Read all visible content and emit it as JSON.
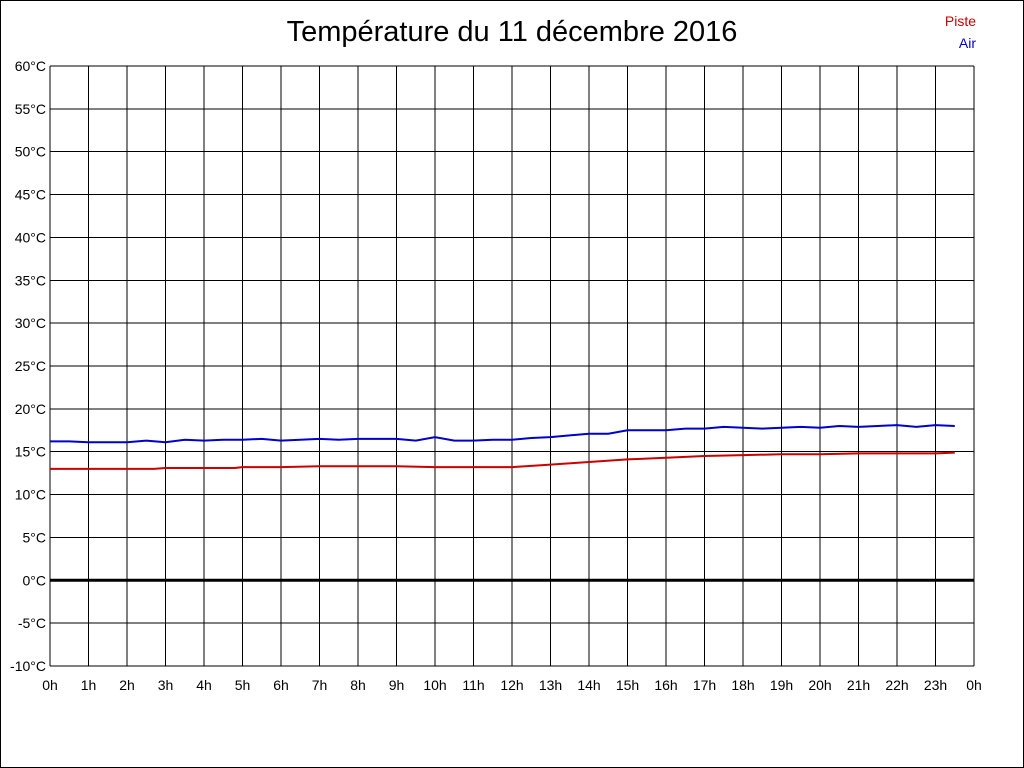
{
  "chart_data": {
    "type": "line",
    "title": "Température du 11 décembre 2016",
    "x_ticks": [
      "0h",
      "1h",
      "2h",
      "3h",
      "4h",
      "5h",
      "6h",
      "7h",
      "8h",
      "9h",
      "10h",
      "11h",
      "12h",
      "13h",
      "14h",
      "15h",
      "16h",
      "17h",
      "18h",
      "19h",
      "20h",
      "21h",
      "22h",
      "23h",
      "0h"
    ],
    "y_ticks": [
      "-10°C",
      "-5°C",
      "0°C",
      "5°C",
      "10°C",
      "15°C",
      "20°C",
      "25°C",
      "30°C",
      "35°C",
      "40°C",
      "45°C",
      "50°C",
      "55°C",
      "60°C"
    ],
    "xlim": [
      0,
      24
    ],
    "ylim": [
      -10,
      60
    ],
    "grid": true,
    "zero_line": true,
    "legend_position": "top-right",
    "series": [
      {
        "name": "Piste",
        "color": "#cc0000",
        "x": [
          0,
          1,
          2,
          2.7,
          3,
          4,
          4.8,
          5,
          6,
          7,
          8,
          9,
          10,
          11,
          12,
          13,
          14,
          15,
          16,
          17,
          18,
          19,
          20,
          21,
          22,
          23,
          23.5
        ],
        "y": [
          13.0,
          13.0,
          13.0,
          13.0,
          13.1,
          13.1,
          13.1,
          13.2,
          13.2,
          13.3,
          13.3,
          13.3,
          13.2,
          13.2,
          13.2,
          13.5,
          13.8,
          14.1,
          14.3,
          14.5,
          14.6,
          14.7,
          14.7,
          14.8,
          14.8,
          14.8,
          14.9
        ]
      },
      {
        "name": "Air",
        "color": "#0000cc",
        "x": [
          0,
          0.5,
          1,
          1.5,
          2,
          2.5,
          3,
          3.5,
          4,
          4.5,
          5,
          5.5,
          6,
          6.5,
          7,
          7.5,
          8,
          8.5,
          9,
          9.5,
          10,
          10.5,
          11,
          11.5,
          12,
          12.5,
          13,
          13.5,
          14,
          14.5,
          15,
          15.5,
          16,
          16.5,
          17,
          17.5,
          18,
          18.5,
          19,
          19.5,
          20,
          20.5,
          21,
          21.5,
          22,
          22.5,
          23,
          23.5
        ],
        "y": [
          16.2,
          16.2,
          16.1,
          16.1,
          16.1,
          16.3,
          16.1,
          16.4,
          16.3,
          16.4,
          16.4,
          16.5,
          16.3,
          16.4,
          16.5,
          16.4,
          16.5,
          16.5,
          16.5,
          16.3,
          16.7,
          16.3,
          16.3,
          16.4,
          16.4,
          16.6,
          16.7,
          16.9,
          17.1,
          17.1,
          17.5,
          17.5,
          17.5,
          17.7,
          17.7,
          17.9,
          17.8,
          17.7,
          17.8,
          17.9,
          17.8,
          18.0,
          17.9,
          18.0,
          18.1,
          17.9,
          18.1,
          18.0
        ]
      }
    ]
  }
}
